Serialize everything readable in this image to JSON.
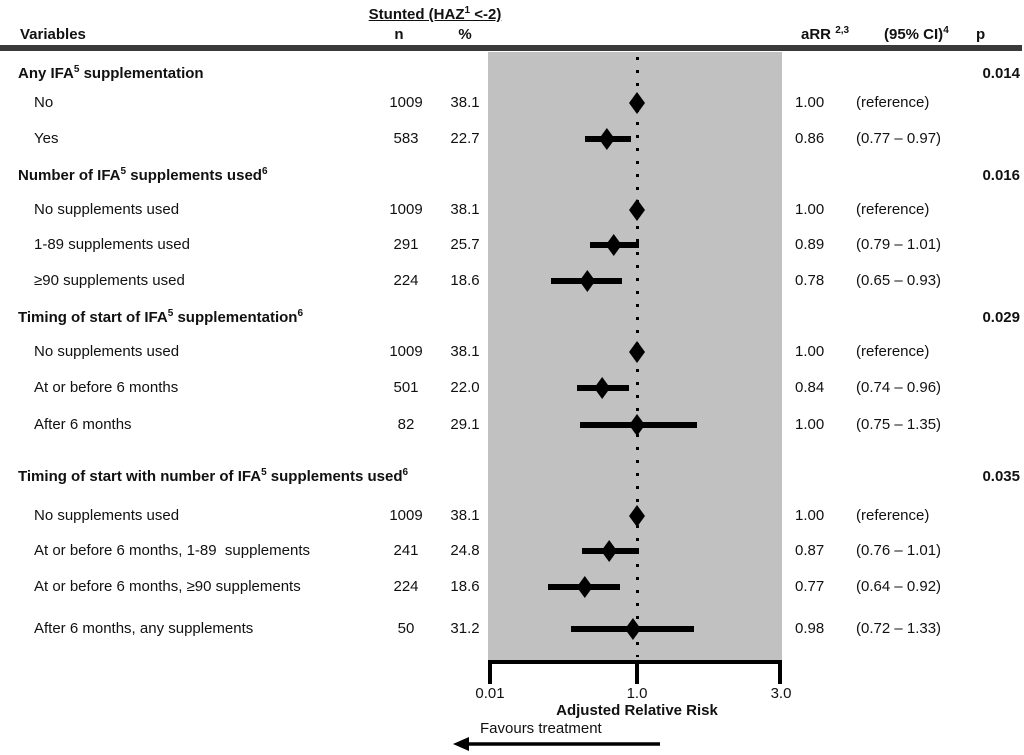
{
  "header": {
    "group_prefix": "Stunted (HAZ",
    "group_sup": "1",
    "group_suffix": " <-2)",
    "variables": "Variables",
    "n": "n",
    "pct": "%",
    "arr": "aRR",
    "arr_sup": "2,3",
    "ci": "(95% CI)",
    "ci_sup": "4",
    "p": "p"
  },
  "axis": {
    "ticks": [
      "0.01",
      "1.0",
      "3.0"
    ],
    "tick_values": [
      0.01,
      1.0,
      3.0
    ],
    "xlabel": "Adjusted Relative Risk",
    "favours": "Favours treatment",
    "reference_value": 1.0
  },
  "colors": {
    "plot_band": "#c1c1c1",
    "marker": "#000000",
    "rule": "#3a3a3a",
    "text": "#111111"
  },
  "chart_data": {
    "type": "forest",
    "x_axis": {
      "label": "Adjusted Relative Risk",
      "scale": "log",
      "ticks": [
        0.01,
        1.0,
        3.0
      ],
      "reference_line": 1.0
    },
    "direction_annotation": "Favours treatment (left)",
    "group_header": "Stunted (HAZ1 <-2)",
    "columns": [
      "Variables",
      "n",
      "%",
      "aRR 2,3",
      "(95% CI)4",
      "p"
    ],
    "rows": [
      {
        "kind": "section",
        "parts": [
          {
            "t": "Any IFA"
          },
          {
            "sup": "5"
          },
          {
            "t": " supplementation"
          }
        ],
        "p": "0.014"
      },
      {
        "kind": "item",
        "parts": [
          {
            "t": "No"
          }
        ],
        "n": "1009",
        "pct": "38.1",
        "arr": "1.00",
        "ci": "(reference)",
        "est": 1.0,
        "reference": true
      },
      {
        "kind": "item",
        "parts": [
          {
            "t": "Yes"
          }
        ],
        "n": "583",
        "pct": "22.7",
        "arr": "0.86",
        "ci": "(0.77 – 0.97)",
        "est": 0.86,
        "lo": 0.77,
        "hi": 0.97
      },
      {
        "kind": "section",
        "parts": [
          {
            "t": "Number of IFA"
          },
          {
            "sup": "5"
          },
          {
            "t": " supplements used"
          },
          {
            "sup": "6"
          }
        ],
        "p": "0.016"
      },
      {
        "kind": "item",
        "parts": [
          {
            "t": "No supplements used"
          }
        ],
        "n": "1009",
        "pct": "38.1",
        "arr": "1.00",
        "ci": "(reference)",
        "est": 1.0,
        "reference": true
      },
      {
        "kind": "item",
        "parts": [
          {
            "t": "1-89 supplements used"
          }
        ],
        "n": "291",
        "pct": "25.7",
        "arr": "0.89",
        "ci": "(0.79 – 1.01)",
        "est": 0.89,
        "lo": 0.79,
        "hi": 1.01
      },
      {
        "kind": "item",
        "parts": [
          {
            "t": "≥90 supplements used"
          }
        ],
        "n": "224",
        "pct": "18.6",
        "arr": "0.78",
        "ci": "(0.65 – 0.93)",
        "est": 0.78,
        "lo": 0.65,
        "hi": 0.93
      },
      {
        "kind": "section",
        "parts": [
          {
            "t": "Timing of start of IFA"
          },
          {
            "sup": "5"
          },
          {
            "t": " supplementation"
          },
          {
            "sup": "6"
          }
        ],
        "p": "0.029"
      },
      {
        "kind": "item",
        "parts": [
          {
            "t": "No supplements used"
          }
        ],
        "n": "1009",
        "pct": "38.1",
        "arr": "1.00",
        "ci": "(reference)",
        "est": 1.0,
        "reference": true
      },
      {
        "kind": "item",
        "parts": [
          {
            "t": "At or before 6 months"
          }
        ],
        "n": "501",
        "pct": "22.0",
        "arr": "0.84",
        "ci": "(0.74 – 0.96)",
        "est": 0.84,
        "lo": 0.74,
        "hi": 0.96
      },
      {
        "kind": "item",
        "parts": [
          {
            "t": "After 6 months"
          }
        ],
        "n": "82",
        "pct": "29.1",
        "arr": "1.00",
        "ci": "(0.75 – 1.35)",
        "est": 1.0,
        "lo": 0.75,
        "hi": 1.35
      },
      {
        "kind": "section",
        "gap_before": true,
        "parts": [
          {
            "t": "Timing of start with number of IFA"
          },
          {
            "sup": "5"
          },
          {
            "t": " supplements used"
          },
          {
            "sup": "6"
          }
        ],
        "p": "0.035"
      },
      {
        "kind": "item",
        "parts": [
          {
            "t": "No supplements used"
          }
        ],
        "n": "1009",
        "pct": "38.1",
        "arr": "1.00",
        "ci": "(reference)",
        "est": 1.0,
        "reference": true
      },
      {
        "kind": "item",
        "parts": [
          {
            "t": "At or before 6 months, 1-89  supplements"
          }
        ],
        "n": "241",
        "pct": "24.8",
        "arr": "0.87",
        "ci": "(0.76 – 1.01)",
        "est": 0.87,
        "lo": 0.76,
        "hi": 1.01
      },
      {
        "kind": "item",
        "parts": [
          {
            "t": "At or before 6 months, ≥90 supplements"
          }
        ],
        "n": "224",
        "pct": "18.6",
        "arr": "0.77",
        "ci": "(0.64 – 0.92)",
        "est": 0.77,
        "lo": 0.64,
        "hi": 0.92
      },
      {
        "kind": "item",
        "parts": [
          {
            "t": "After 6 months, any supplements"
          }
        ],
        "n": "50",
        "pct": "31.2",
        "arr": "0.98",
        "ci": "(0.72 – 1.33)",
        "est": 0.98,
        "lo": 0.72,
        "hi": 1.33
      }
    ]
  }
}
